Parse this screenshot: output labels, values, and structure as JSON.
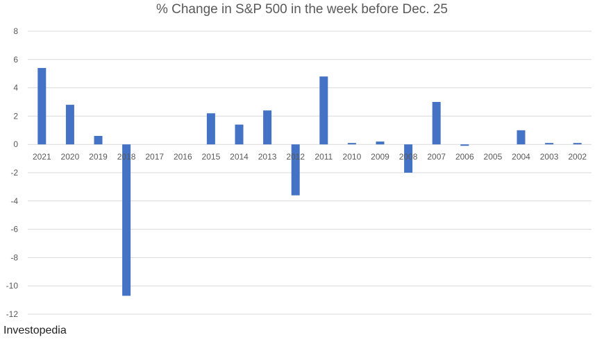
{
  "chart_data": {
    "type": "bar",
    "title": "% Change in S&P 500 in the week before Dec. 25",
    "categories": [
      "2021",
      "2020",
      "2019",
      "2018",
      "2017",
      "2016",
      "2015",
      "2014",
      "2013",
      "2012",
      "2011",
      "2010",
      "2009",
      "2008",
      "2007",
      "2006",
      "2005",
      "2004",
      "2003",
      "2002"
    ],
    "values": [
      5.4,
      2.8,
      0.6,
      -10.7,
      0,
      0,
      2.2,
      1.4,
      2.4,
      -3.6,
      4.8,
      0.1,
      0.2,
      -2.0,
      3.0,
      -0.1,
      0,
      1.0,
      0.1,
      0.1
    ],
    "yticks": [
      8,
      6,
      4,
      2,
      0,
      -2,
      -4,
      -6,
      -8,
      -10,
      -12
    ],
    "ylim": [
      -12,
      8
    ],
    "xlabel": "",
    "ylabel": "",
    "grid": true,
    "bar_color": "#4472c4",
    "grid_color": "#d9d9d9"
  },
  "source": "Investopedia"
}
